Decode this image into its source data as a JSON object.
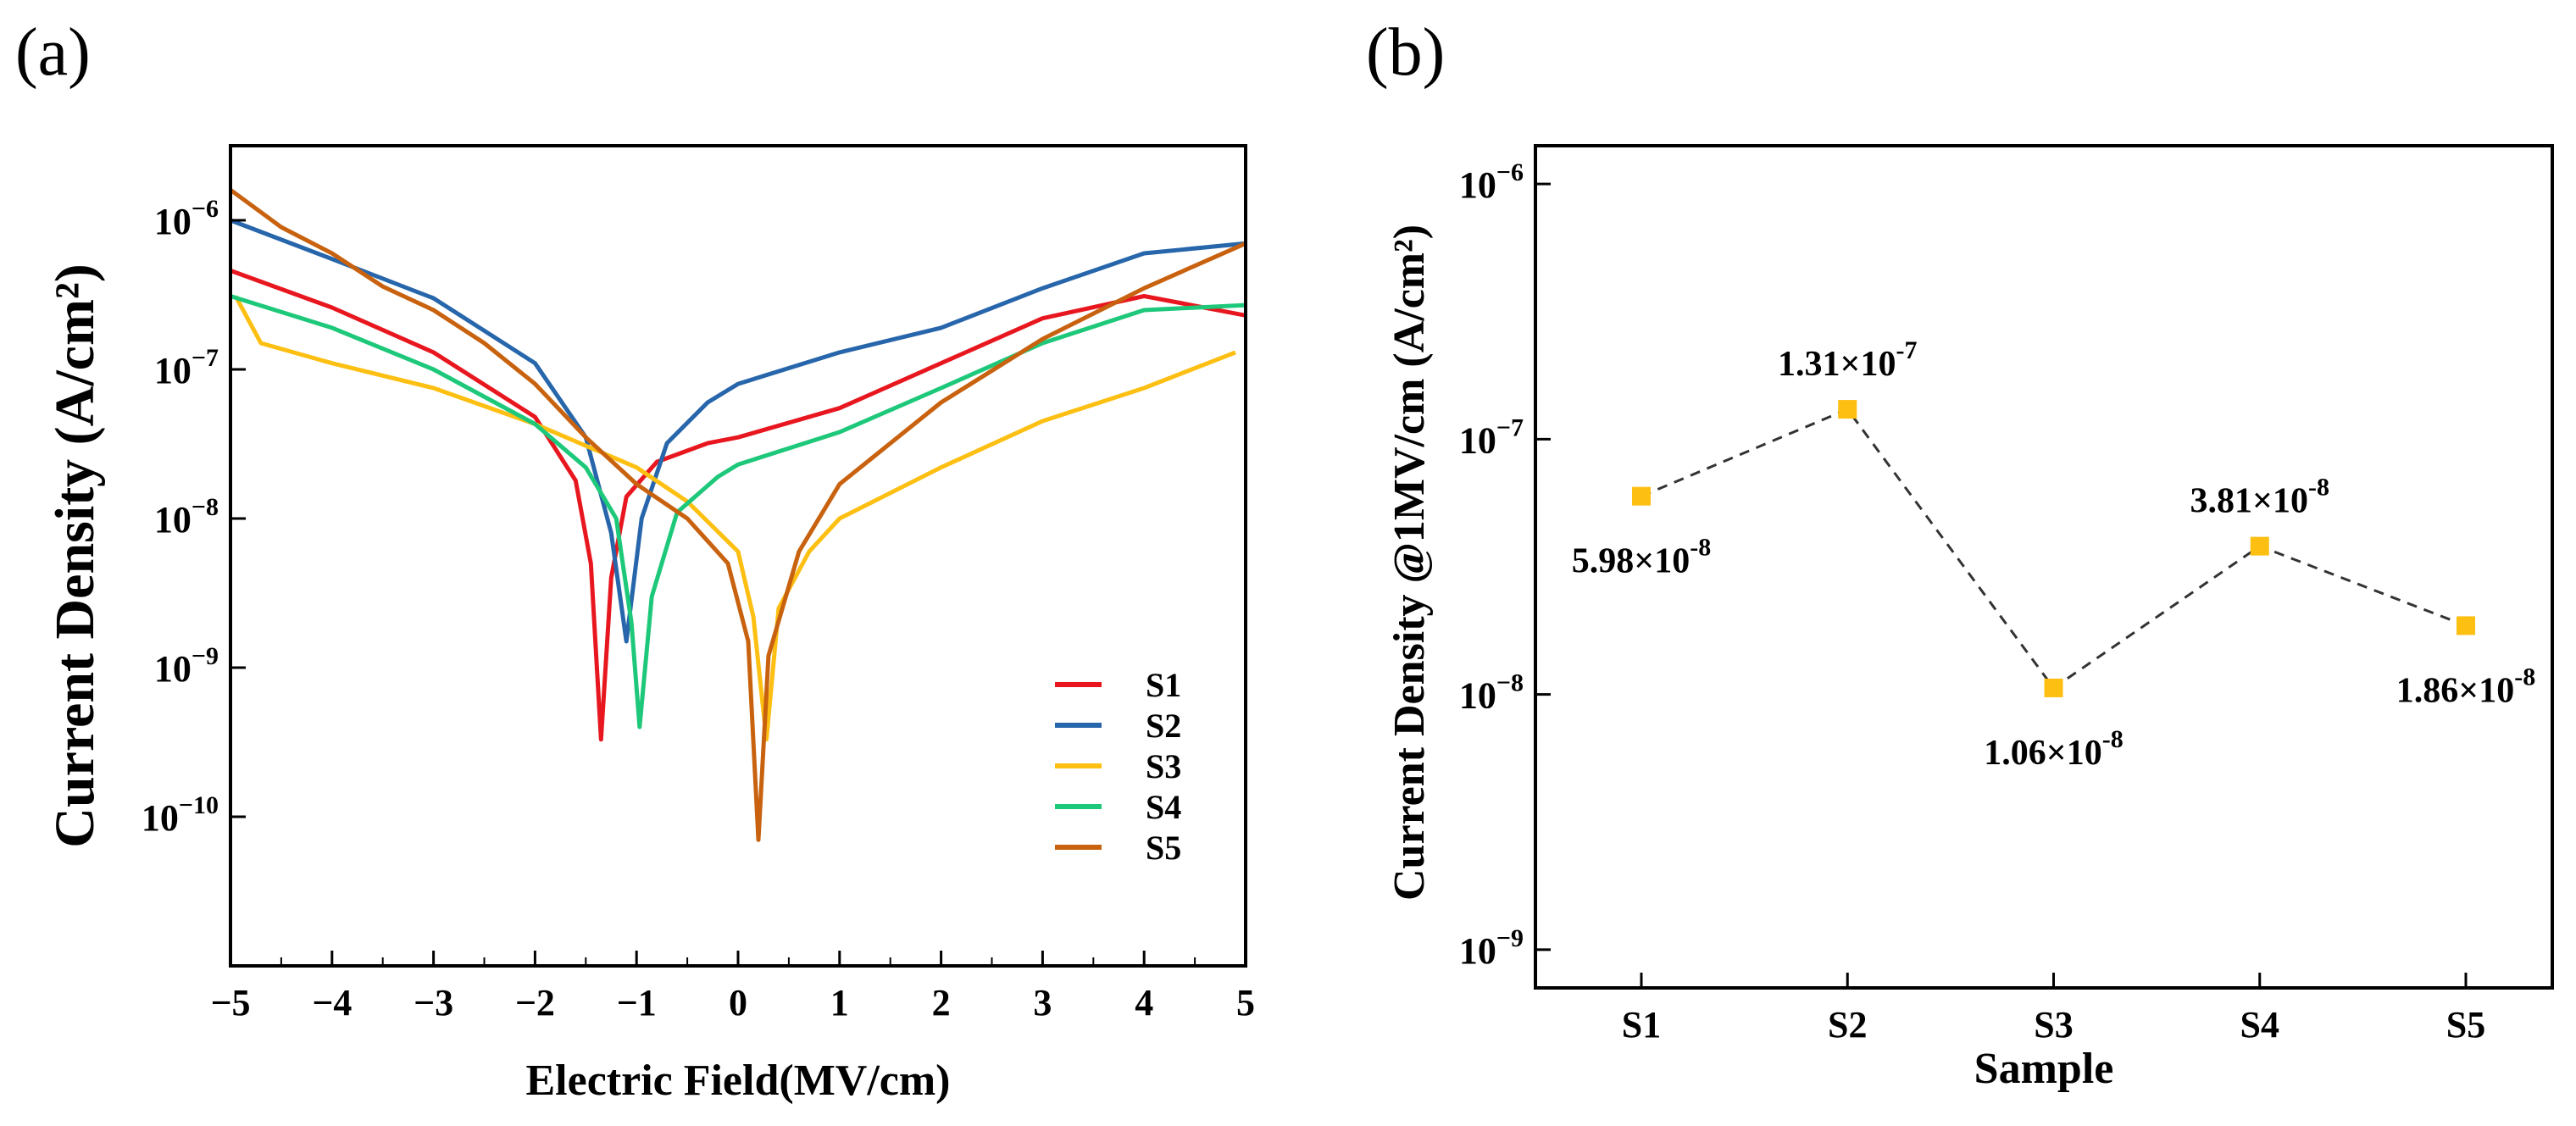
{
  "chart_data": [
    {
      "panel_label": "(a)",
      "type": "line",
      "xlabel": "Electric Field(MV/cm)",
      "ylabel": "Current Density (A/cm²)",
      "yscale": "log",
      "xlim": [
        -5,
        5
      ],
      "ylim_exp": [
        -11,
        -5.5
      ],
      "xticks": [
        "−5",
        "−4",
        "−3",
        "−2",
        "−1",
        "0",
        "1",
        "2",
        "3",
        "4",
        "5"
      ],
      "yticks": [
        {
          "base": "10",
          "exp": "−6",
          "value_exp": -6
        },
        {
          "base": "10",
          "exp": "−7",
          "value_exp": -7
        },
        {
          "base": "10",
          "exp": "−8",
          "value_exp": -8
        },
        {
          "base": "10",
          "exp": "−9",
          "value_exp": -9
        },
        {
          "base": "10",
          "exp": "−10",
          "value_exp": -10
        }
      ],
      "legend": [
        "S1",
        "S2",
        "S3",
        "S4",
        "S5"
      ],
      "legend_position": "lower-right",
      "series": [
        {
          "name": "S1",
          "color": "#e8171f",
          "points": [
            [
              -5,
              4.6e-07
            ],
            [
              -4,
              2.6e-07
            ],
            [
              -3,
              1.3e-07
            ],
            [
              -2,
              4.8e-08
            ],
            [
              -1.6,
              1.8e-08
            ],
            [
              -1.45,
              5e-09
            ],
            [
              -1.35,
              3.3e-10
            ],
            [
              -1.25,
              4e-09
            ],
            [
              -1.1,
              1.4e-08
            ],
            [
              -0.8,
              2.4e-08
            ],
            [
              -0.3,
              3.2e-08
            ],
            [
              0,
              3.5e-08
            ],
            [
              1,
              5.5e-08
            ],
            [
              2,
              1.1e-07
            ],
            [
              3,
              2.2e-07
            ],
            [
              4,
              3.1e-07
            ],
            [
              5,
              2.3e-07
            ]
          ]
        },
        {
          "name": "S2",
          "color": "#2766ab",
          "points": [
            [
              -5,
              1e-06
            ],
            [
              -4,
              5.5e-07
            ],
            [
              -3,
              3e-07
            ],
            [
              -2,
              1.1e-07
            ],
            [
              -1.5,
              3.5e-08
            ],
            [
              -1.25,
              8e-09
            ],
            [
              -1.1,
              1.5e-09
            ],
            [
              -0.95,
              1e-08
            ],
            [
              -0.7,
              3.2e-08
            ],
            [
              -0.3,
              6e-08
            ],
            [
              0,
              8e-08
            ],
            [
              1,
              1.3e-07
            ],
            [
              2,
              1.9e-07
            ],
            [
              3,
              3.5e-07
            ],
            [
              4,
              6e-07
            ],
            [
              5,
              7e-07
            ]
          ]
        },
        {
          "name": "S3",
          "color": "#fdbf12",
          "points": [
            [
              -4.95,
              3.1e-07
            ],
            [
              -4.7,
              1.5e-07
            ],
            [
              -4,
              1.1e-07
            ],
            [
              -3,
              7.5e-08
            ],
            [
              -2,
              4.3e-08
            ],
            [
              -1,
              2.2e-08
            ],
            [
              -0.5,
              1.3e-08
            ],
            [
              0,
              6e-09
            ],
            [
              0.15,
              2.2e-09
            ],
            [
              0.28,
              3.3e-10
            ],
            [
              0.4,
              2.5e-09
            ],
            [
              0.7,
              6e-09
            ],
            [
              1,
              1e-08
            ],
            [
              2,
              2.2e-08
            ],
            [
              3,
              4.5e-08
            ],
            [
              4,
              7.5e-08
            ],
            [
              4.9,
              1.3e-07
            ]
          ]
        },
        {
          "name": "S4",
          "color": "#1ec87a",
          "points": [
            [
              -5,
              3.1e-07
            ],
            [
              -4,
              1.9e-07
            ],
            [
              -3,
              1e-07
            ],
            [
              -2,
              4.3e-08
            ],
            [
              -1.5,
              2.2e-08
            ],
            [
              -1.2,
              1e-08
            ],
            [
              -1.05,
              2e-09
            ],
            [
              -0.97,
              4e-10
            ],
            [
              -0.85,
              3e-09
            ],
            [
              -0.6,
              1.1e-08
            ],
            [
              -0.2,
              1.9e-08
            ],
            [
              0,
              2.3e-08
            ],
            [
              1,
              3.8e-08
            ],
            [
              2,
              7.5e-08
            ],
            [
              3,
              1.5e-07
            ],
            [
              4,
              2.5e-07
            ],
            [
              5,
              2.7e-07
            ]
          ]
        },
        {
          "name": "S5",
          "color": "#c8620f",
          "points": [
            [
              -5,
              1.6e-06
            ],
            [
              -4.5,
              9e-07
            ],
            [
              -4,
              6e-07
            ],
            [
              -3.5,
              3.6e-07
            ],
            [
              -3,
              2.5e-07
            ],
            [
              -2.5,
              1.5e-07
            ],
            [
              -2,
              8e-08
            ],
            [
              -1.5,
              3.5e-08
            ],
            [
              -1,
              1.7e-08
            ],
            [
              -0.5,
              1e-08
            ],
            [
              -0.1,
              5e-09
            ],
            [
              0.1,
              1.5e-09
            ],
            [
              0.2,
              7e-11
            ],
            [
              0.3,
              1.2e-09
            ],
            [
              0.6,
              6e-09
            ],
            [
              1,
              1.7e-08
            ],
            [
              2,
              6e-08
            ],
            [
              3,
              1.6e-07
            ],
            [
              4,
              3.5e-07
            ],
            [
              5,
              7e-07
            ]
          ]
        }
      ]
    },
    {
      "panel_label": "(b)",
      "type": "line",
      "style": "dashed line with square markers",
      "xlabel": "Sample",
      "ylabel": "Current Density @1MV/cm (A/cm²)",
      "yscale": "log",
      "ylim_exp": [
        -9.15,
        -5.85
      ],
      "categories": [
        "S1",
        "S2",
        "S3",
        "S4",
        "S5"
      ],
      "values": [
        5.98e-08,
        1.31e-07,
        1.06e-08,
        3.81e-08,
        1.86e-08
      ],
      "marker_color": "#fdbf12",
      "line_color": "#333333",
      "yticks": [
        {
          "base": "10",
          "exp": "−6",
          "value_exp": -6
        },
        {
          "base": "10",
          "exp": "−7",
          "value_exp": -7
        },
        {
          "base": "10",
          "exp": "−8",
          "value_exp": -8
        },
        {
          "base": "10",
          "exp": "−9",
          "value_exp": -9
        }
      ],
      "data_labels": [
        {
          "mantissa": "5.98×10",
          "exp": "-8",
          "pos": "below"
        },
        {
          "mantissa": "1.31×10",
          "exp": "-7",
          "pos": "above"
        },
        {
          "mantissa": "1.06×10",
          "exp": "-8",
          "pos": "below"
        },
        {
          "mantissa": "3.81×10",
          "exp": "-8",
          "pos": "above"
        },
        {
          "mantissa": "1.86×10",
          "exp": "-8",
          "pos": "below"
        }
      ]
    }
  ]
}
